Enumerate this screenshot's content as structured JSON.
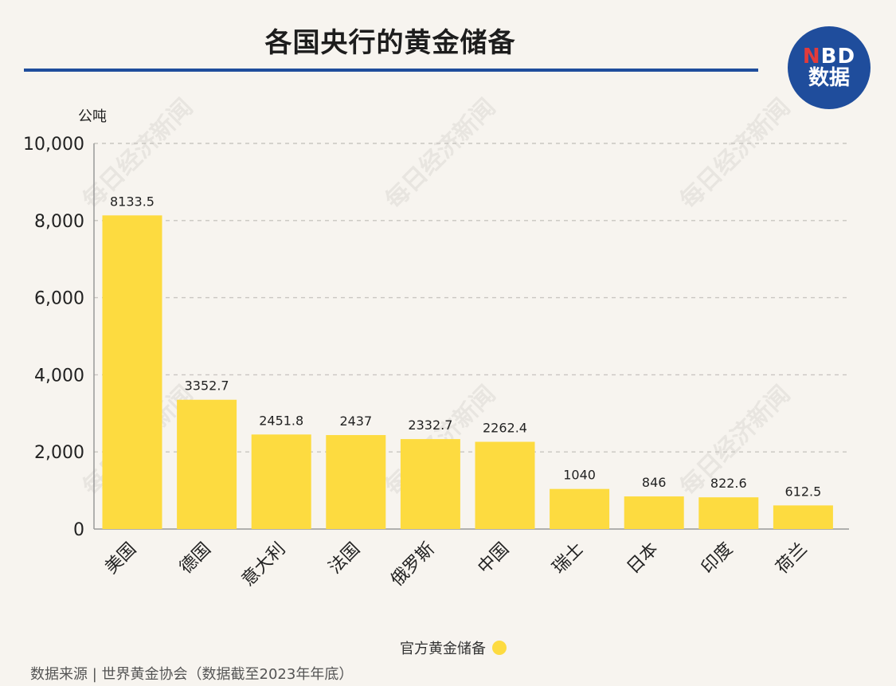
{
  "title": "各国央行的黄金储备",
  "logo": {
    "line1_accent": "N",
    "line1_rest": "BD",
    "line2": "数据",
    "color": "#1f4d9c"
  },
  "watermark": "每日经济新闻",
  "chart_data": {
    "type": "bar",
    "title": "各国央行的黄金储备",
    "ylabel": "公吨",
    "xlabel": "",
    "ylim": [
      0,
      10000
    ],
    "yticks": [
      0,
      2000,
      4000,
      6000,
      8000,
      10000
    ],
    "ytick_labels": [
      "0",
      "2,000",
      "4,000",
      "6,000",
      "8,000",
      "10,000"
    ],
    "grid": true,
    "categories": [
      "美国",
      "德国",
      "意大利",
      "法国",
      "俄罗斯",
      "中国",
      "瑞士",
      "日本",
      "印度",
      "荷兰"
    ],
    "series": [
      {
        "name": "官方黄金储备",
        "color": "#fddb40",
        "values": [
          8133.5,
          3352.7,
          2451.8,
          2437,
          2332.7,
          2262.4,
          1040,
          846,
          822.6,
          612.5
        ],
        "labels": [
          "8133.5",
          "3352.7",
          "2451.8",
          "2437",
          "2332.7",
          "2262.4",
          "1040",
          "846",
          "822.6",
          "612.5"
        ]
      }
    ],
    "legend_position": "bottom-center"
  },
  "legend": {
    "label": "官方黄金储备"
  },
  "source": "数据来源 | 世界黄金协会（数据截至2023年年底）"
}
